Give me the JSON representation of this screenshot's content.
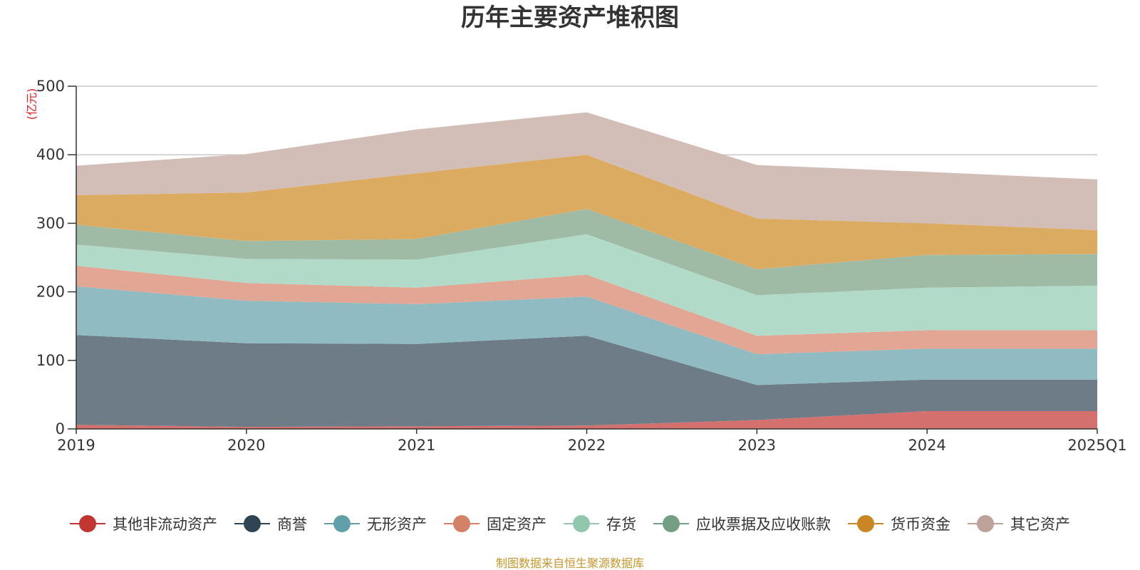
{
  "chart_data": {
    "type": "area",
    "stacked": true,
    "title": "历年主要资产堆积图",
    "ylabel": "(亿元)",
    "xlabel": "",
    "ylim": [
      0,
      500
    ],
    "yticks": [
      0,
      100,
      200,
      300,
      400,
      500
    ],
    "categories": [
      "2019",
      "2020",
      "2021",
      "2022",
      "2023",
      "2024",
      "2025Q1"
    ],
    "grid": true,
    "legend_position": "bottom",
    "series": [
      {
        "name": "其他非流动资产",
        "color": "#c23531",
        "fill": "#d4706d",
        "values": [
          6,
          3,
          4,
          5,
          13,
          26,
          26
        ]
      },
      {
        "name": "商誉",
        "color": "#2f4554",
        "fill": "#6e7c88",
        "values": [
          131,
          122,
          120,
          131,
          51,
          46,
          46
        ]
      },
      {
        "name": "无形资产",
        "color": "#61a0a8",
        "fill": "#90bbc2",
        "values": [
          71,
          62,
          58,
          57,
          45,
          45,
          45
        ]
      },
      {
        "name": "固定资产",
        "color": "#d48265",
        "fill": "#e2a794",
        "values": [
          30,
          26,
          24,
          32,
          27,
          27,
          27
        ]
      },
      {
        "name": "存货",
        "color": "#91c7ae",
        "fill": "#b2dac8",
        "values": [
          31,
          35,
          41,
          59,
          59,
          62,
          65
        ]
      },
      {
        "name": "应收票据及应收账款",
        "color": "#749f83",
        "fill": "#9fbba6",
        "values": [
          29,
          26,
          30,
          37,
          38,
          48,
          46
        ]
      },
      {
        "name": "货币资金",
        "color": "#ca8622",
        "fill": "#dbab61",
        "values": [
          43,
          71,
          96,
          79,
          74,
          46,
          35
        ]
      },
      {
        "name": "其它资产",
        "color": "#bda29a",
        "fill": "#d2bdb7",
        "values": [
          43,
          56,
          64,
          62,
          78,
          75,
          74
        ]
      }
    ]
  },
  "source_note": "制图数据来自恒生聚源数据库"
}
